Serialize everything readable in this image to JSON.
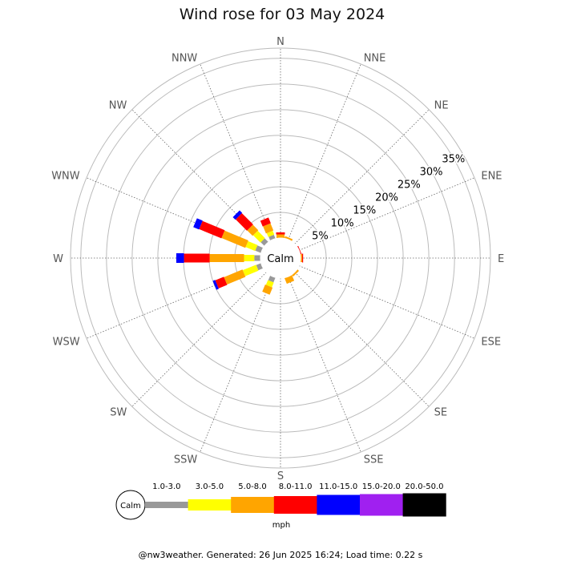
{
  "chart_data": {
    "type": "wind-rose",
    "title": "Wind rose for 03 May 2024",
    "directions": [
      "N",
      "NNE",
      "NE",
      "ENE",
      "E",
      "ESE",
      "SE",
      "SSE",
      "S",
      "SSW",
      "SW",
      "WSW",
      "W",
      "WNW",
      "NW",
      "NNW"
    ],
    "ring_labels": [
      "5%",
      "10%",
      "15%",
      "20%",
      "25%",
      "30%",
      "35%"
    ],
    "rmax_percent": 37,
    "calm_label": "Calm",
    "unit": "mph",
    "bins": [
      {
        "label": "1.0-3.0",
        "color": "#999999"
      },
      {
        "label": "3.0-5.0",
        "color": "#ffff00"
      },
      {
        "label": "5.0-8.0",
        "color": "#ffa500"
      },
      {
        "label": "8.0-11.0",
        "color": "#ff0000"
      },
      {
        "label": "11.0-15.0",
        "color": "#0000ff"
      },
      {
        "label": "15.0-20.0",
        "color": "#a020f0"
      },
      {
        "label": "20.0-50.0",
        "color": "#000000"
      }
    ],
    "series": [
      {
        "direction": "NNE",
        "values": [
          0,
          0,
          0.4,
          0,
          0,
          0,
          0
        ]
      },
      {
        "direction": "ENE",
        "values": [
          0,
          0,
          0,
          0.2,
          0,
          0,
          0
        ]
      },
      {
        "direction": "E",
        "values": [
          0,
          0,
          0.3,
          0.2,
          0,
          0,
          0
        ]
      },
      {
        "direction": "SE",
        "values": [
          0,
          0,
          0.4,
          0,
          0,
          0,
          0
        ]
      },
      {
        "direction": "SSE",
        "values": [
          0,
          0,
          1.2,
          0,
          0,
          0,
          0
        ]
      },
      {
        "direction": "SSW",
        "values": [
          1.0,
          1.0,
          1.5,
          0,
          0,
          0,
          0
        ]
      },
      {
        "direction": "SW",
        "values": [
          0,
          0,
          0,
          0,
          0,
          0,
          0
        ]
      },
      {
        "direction": "WSW",
        "values": [
          1.0,
          2.8,
          3.9,
          1.8,
          0.5,
          0,
          0
        ]
      },
      {
        "direction": "W",
        "values": [
          1.2,
          2.0,
          6.7,
          5.0,
          1.5,
          0,
          0
        ]
      },
      {
        "direction": "WNW",
        "values": [
          1.2,
          2.0,
          5.0,
          4.7,
          1.2,
          0,
          0
        ]
      },
      {
        "direction": "NW",
        "values": [
          1.0,
          2.0,
          1.5,
          3.1,
          0.7,
          0,
          0
        ]
      },
      {
        "direction": "NNW",
        "values": [
          0.8,
          0.8,
          1.5,
          1.2,
          0,
          0,
          0
        ]
      },
      {
        "direction": "N",
        "values": [
          0,
          0,
          0.7,
          0.4,
          0,
          0,
          0
        ]
      }
    ]
  },
  "footer": "@nw3weather. Generated: 26 Jun 2025 16:24; Load time: 0.22 s"
}
